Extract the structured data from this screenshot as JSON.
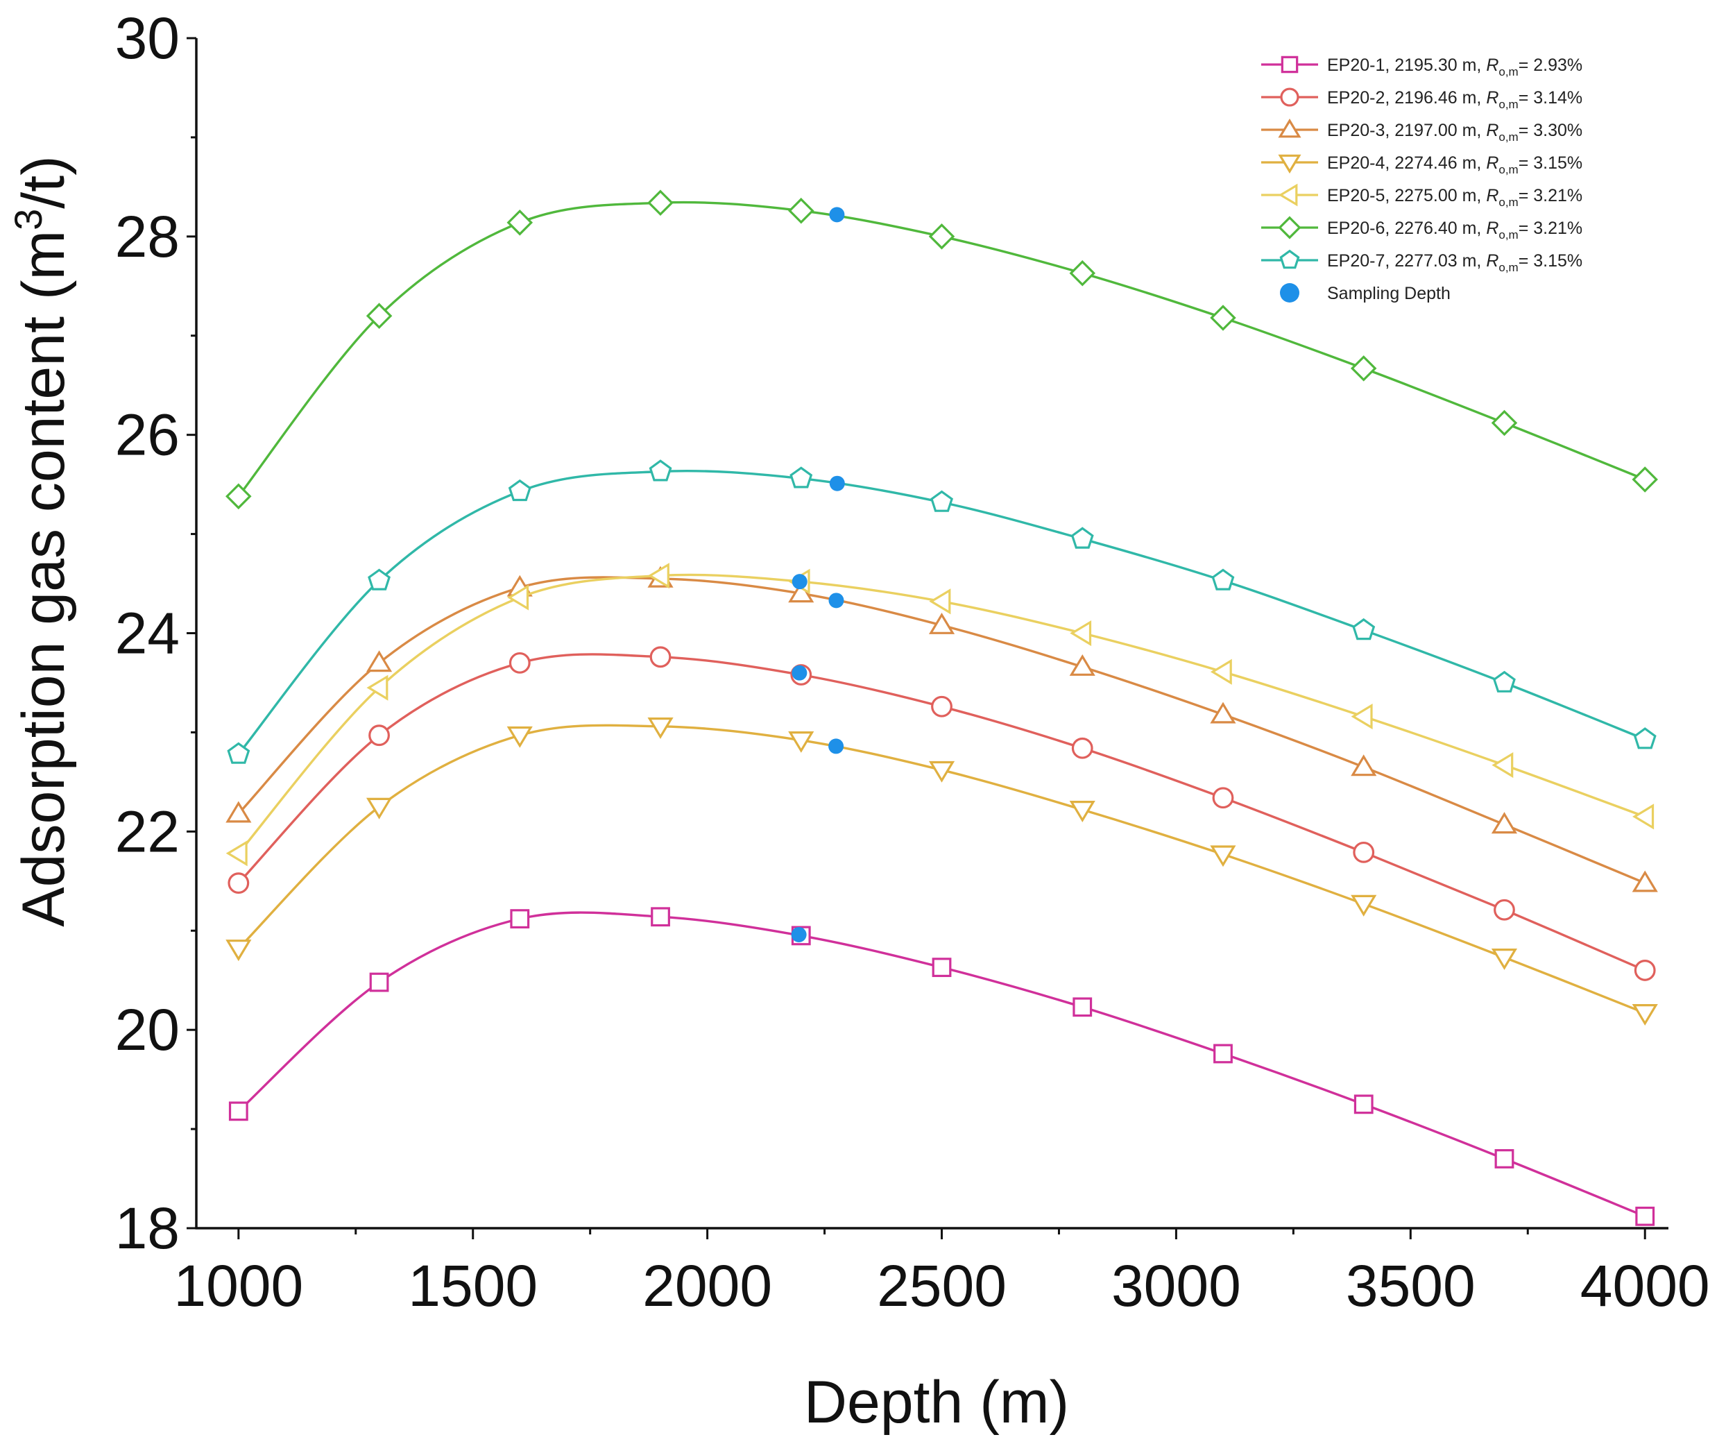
{
  "chart_data": {
    "type": "line",
    "xlabel": "Depth (m)",
    "ylabel": {
      "main": "Adsorption gas content (m",
      "sup": "3",
      "tail": "/t)"
    },
    "xlim": [
      910,
      4050
    ],
    "ylim": [
      18,
      30
    ],
    "xticks": [
      1000,
      1500,
      2000,
      2500,
      3000,
      3500,
      4000
    ],
    "yticks": [
      18,
      20,
      22,
      24,
      26,
      28,
      30
    ],
    "x": [
      1000,
      1300,
      1600,
      1900,
      2200,
      2500,
      2800,
      3100,
      3400,
      3700,
      4000
    ],
    "series": [
      {
        "name": "EP20-1",
        "info": "2195.30 m,",
        "ro_sym": "R",
        "ro_sub": "o,m",
        "ro_val": "= 2.93%",
        "color": "#D0309A",
        "marker": "square",
        "values": [
          19.18,
          20.48,
          21.12,
          21.14,
          20.95,
          20.63,
          20.23,
          19.76,
          19.25,
          18.7,
          18.12
        ]
      },
      {
        "name": "EP20-2",
        "info": "2196.46 m,",
        "ro_sym": "R",
        "ro_sub": "o,m",
        "ro_val": "= 3.14%",
        "color": "#E0605C",
        "marker": "circle",
        "values": [
          21.48,
          22.97,
          23.7,
          23.76,
          23.58,
          23.26,
          22.84,
          22.34,
          21.79,
          21.21,
          20.6
        ]
      },
      {
        "name": "EP20-3",
        "info": "2197.00 m,",
        "ro_sym": "R",
        "ro_sub": "o,m",
        "ro_val": "= 3.30%",
        "color": "#D98A45",
        "marker": "triangle-up",
        "values": [
          22.18,
          23.7,
          24.46,
          24.55,
          24.4,
          24.08,
          23.66,
          23.18,
          22.65,
          22.07,
          21.48
        ]
      },
      {
        "name": "EP20-4",
        "info": "2274.46 m,",
        "ro_sym": "R",
        "ro_sub": "o,m",
        "ro_val": "= 3.15%",
        "color": "#E0B040",
        "marker": "triangle-down",
        "values": [
          20.82,
          22.25,
          22.97,
          23.06,
          22.92,
          22.62,
          22.22,
          21.77,
          21.27,
          20.73,
          20.17
        ]
      },
      {
        "name": "EP20-5",
        "info": "2275.00 m,",
        "ro_sym": "R",
        "ro_sub": "o,m",
        "ro_val": "= 3.21%",
        "color": "#EAD060",
        "marker": "triangle-left",
        "values": [
          21.78,
          23.45,
          24.36,
          24.58,
          24.52,
          24.32,
          24.0,
          23.61,
          23.16,
          22.67,
          22.15
        ]
      },
      {
        "name": "EP20-6",
        "info": "2276.40 m,",
        "ro_sym": "R",
        "ro_sub": "o,m",
        "ro_val": "= 3.21%",
        "color": "#50B83C",
        "marker": "diamond",
        "values": [
          25.38,
          27.2,
          28.14,
          28.34,
          28.26,
          28.0,
          27.63,
          27.18,
          26.67,
          26.12,
          25.55
        ]
      },
      {
        "name": "EP20-7",
        "info": "2277.03 m,",
        "ro_sym": "R",
        "ro_sub": "o,m",
        "ro_val": "= 3.15%",
        "color": "#30B8A8",
        "marker": "pentagon",
        "values": [
          22.78,
          24.53,
          25.43,
          25.63,
          25.56,
          25.32,
          24.95,
          24.53,
          24.03,
          23.5,
          22.93
        ]
      }
    ],
    "sampling_depth": {
      "label": "Sampling Depth",
      "color": "#1E90E8",
      "points": [
        {
          "x": 2195.3,
          "y": 20.96
        },
        {
          "x": 2196.46,
          "y": 23.6
        },
        {
          "x": 2197.0,
          "y": 24.52
        },
        {
          "x": 2274.46,
          "y": 22.86
        },
        {
          "x": 2275.0,
          "y": 24.33
        },
        {
          "x": 2276.4,
          "y": 28.22
        },
        {
          "x": 2277.03,
          "y": 25.51
        }
      ]
    },
    "legend": "top-right",
    "grid": false
  }
}
